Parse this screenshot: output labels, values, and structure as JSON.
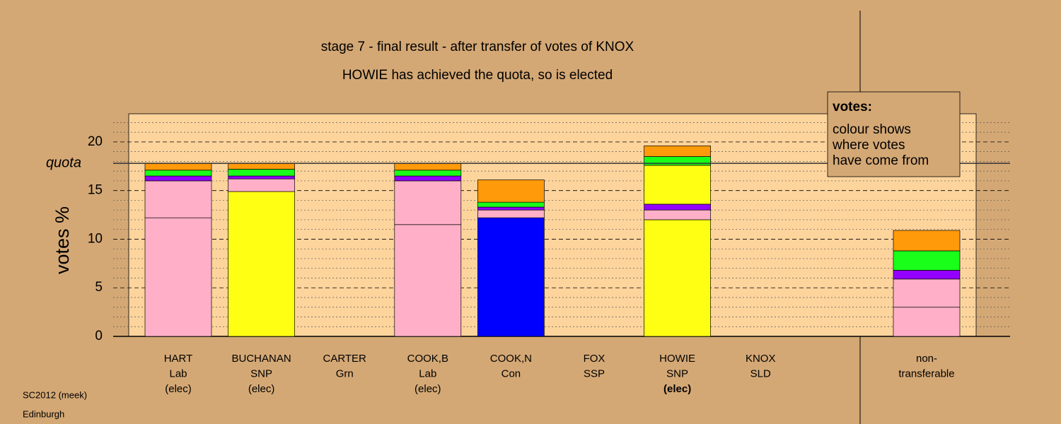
{
  "chart_data": {
    "type": "stacked_bar",
    "title": "stage 7 - final result - after transfer of votes of KNOX",
    "subtitle": "HOWIE has achieved the quota, so is elected",
    "y_label": "votes %",
    "quota": {
      "label": "quota",
      "value": 17.8
    },
    "legend_box": {
      "title": "votes:",
      "lines": [
        "colour shows",
        "where votes",
        "have come from"
      ]
    },
    "footer": [
      "SC2012 (meek)",
      "Edinburgh"
    ],
    "categories": [
      [
        "HART",
        "Lab",
        "(elec)"
      ],
      [
        "BUCHANAN",
        "SNP",
        "(elec)"
      ],
      [
        "CARTER",
        "Grn"
      ],
      [
        "COOK,B",
        "Lab",
        "(elec)"
      ],
      [
        "COOK,N",
        "Con"
      ],
      [
        "FOX",
        "SSP"
      ],
      [
        "HOWIE",
        "SNP",
        "(elec)"
      ],
      [
        "KNOX",
        "SLD"
      ],
      [
        "non-",
        "transferable"
      ]
    ],
    "emphasis_category": 6,
    "series": [
      {
        "colors": [
          "#ffb0c8",
          "#ffff14",
          "#00ff00",
          "#ffb0c8",
          "#0000ff",
          "#9400ff",
          "#ffff14",
          "#ff9a00",
          "#ffb0c8"
        ],
        "values": [
          12.2,
          14.9,
          0,
          11.5,
          12.2,
          0,
          12.0,
          0,
          3.0
        ]
      },
      {
        "color": "#ffb0c8",
        "values": [
          3.8,
          1.3,
          0,
          4.5,
          0.8,
          0,
          1.0,
          0,
          2.9
        ]
      },
      {
        "color": "#9400ff",
        "values": [
          0.5,
          0.3,
          0,
          0.5,
          0.3,
          0,
          0.6,
          0,
          0.9
        ]
      },
      {
        "color": "#ffff14",
        "values": [
          0,
          0,
          0,
          0,
          0,
          0,
          4.0,
          0,
          0
        ]
      },
      {
        "color": "#19ff19",
        "values": [
          0.6,
          0.7,
          0,
          0.6,
          0.5,
          0,
          0.9,
          0,
          2.0
        ]
      },
      {
        "color": "#ff9a0a",
        "values": [
          0.7,
          0.6,
          0,
          0.7,
          2.3,
          0,
          1.1,
          0,
          2.1
        ]
      }
    ],
    "ylim": [
      0,
      22.9
    ],
    "yticks": [
      0,
      5,
      10,
      15,
      20
    ],
    "minor_yticks": [
      1,
      2,
      3,
      4,
      6,
      7,
      8,
      9,
      11,
      12,
      13,
      14,
      16,
      17,
      18,
      19,
      21,
      22
    ]
  }
}
